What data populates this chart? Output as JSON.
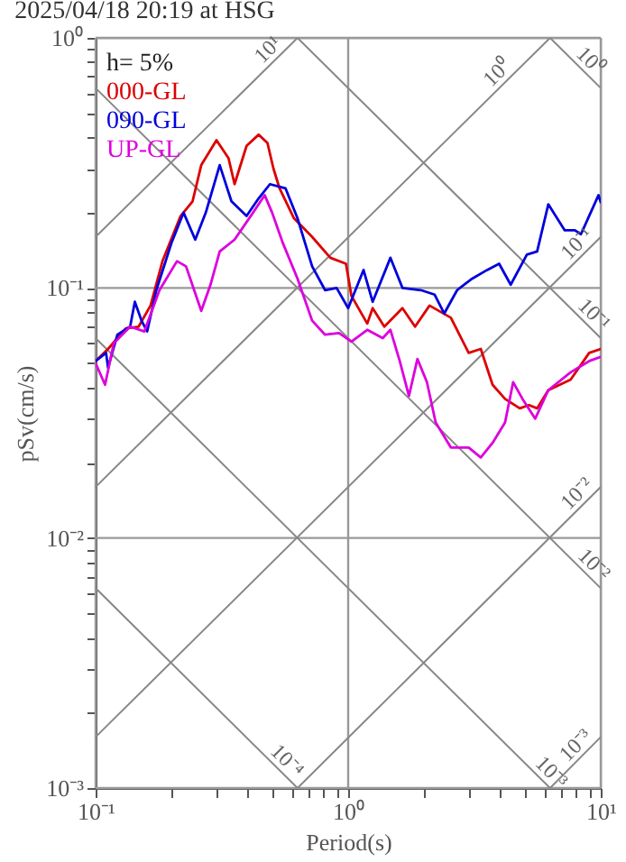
{
  "chart_data": {
    "type": "line",
    "title": "2025/04/18 20:19 at HSG",
    "xlabel": "Period(s)",
    "ylabel": "pSv(cm/s)",
    "legend_title": "h= 5%",
    "legend": "top left",
    "log": "xy",
    "grid": true,
    "line_style": "solid",
    "marker": "none",
    "xlim": [
      0.1,
      10
    ],
    "ylim": [
      0.001,
      1
    ],
    "xticks": [
      {
        "value": 0.1,
        "label": "10⁻¹"
      },
      {
        "value": 0.2,
        "label": null
      },
      {
        "value": 0.3,
        "label": null
      },
      {
        "value": 0.4,
        "label": null
      },
      {
        "value": 0.5,
        "label": null
      },
      {
        "value": 0.6,
        "label": null
      },
      {
        "value": 0.7,
        "label": null
      },
      {
        "value": 0.8,
        "label": null
      },
      {
        "value": 0.9,
        "label": null
      },
      {
        "value": 1,
        "label": "10⁰"
      },
      {
        "value": 2,
        "label": null
      },
      {
        "value": 3,
        "label": null
      },
      {
        "value": 4,
        "label": null
      },
      {
        "value": 5,
        "label": null
      },
      {
        "value": 6,
        "label": null
      },
      {
        "value": 7,
        "label": null
      },
      {
        "value": 8,
        "label": null
      },
      {
        "value": 9,
        "label": null
      },
      {
        "value": 10,
        "label": "10¹"
      }
    ],
    "yticks": [
      {
        "value": 0.001,
        "label": "10⁻³"
      },
      {
        "value": 0.002,
        "label": null
      },
      {
        "value": 0.003,
        "label": null
      },
      {
        "value": 0.004,
        "label": null
      },
      {
        "value": 0.005,
        "label": null
      },
      {
        "value": 0.006,
        "label": null
      },
      {
        "value": 0.007,
        "label": null
      },
      {
        "value": 0.008,
        "label": null
      },
      {
        "value": 0.009,
        "label": null
      },
      {
        "value": 0.01,
        "label": "10⁻²"
      },
      {
        "value": 0.02,
        "label": null
      },
      {
        "value": 0.03,
        "label": null
      },
      {
        "value": 0.04,
        "label": null
      },
      {
        "value": 0.05,
        "label": null
      },
      {
        "value": 0.06,
        "label": null
      },
      {
        "value": 0.07,
        "label": null
      },
      {
        "value": 0.08,
        "label": null
      },
      {
        "value": 0.09,
        "label": null
      },
      {
        "value": 0.1,
        "label": "10⁻¹"
      },
      {
        "value": 0.2,
        "label": null
      },
      {
        "value": 0.3,
        "label": null
      },
      {
        "value": 0.4,
        "label": null
      },
      {
        "value": 0.5,
        "label": null
      },
      {
        "value": 0.6,
        "label": null
      },
      {
        "value": 0.7,
        "label": null
      },
      {
        "value": 0.8,
        "label": null
      },
      {
        "value": 0.9,
        "label": null
      },
      {
        "value": 1,
        "label": "10⁰"
      }
    ],
    "series": [
      {
        "color": "#888888",
        "x": [
          0.1,
          0.63
        ],
        "values": [
          0.0063,
          0.001
        ]
      },
      {
        "color": "#888888",
        "x": [
          0.1,
          6.3
        ],
        "values": [
          0.063,
          0.001
        ]
      },
      {
        "color": "#888888",
        "x": [
          0.1,
          10
        ],
        "values": [
          0.63,
          0.0063
        ]
      },
      {
        "color": "#888888",
        "x": [
          0.63,
          10
        ],
        "values": [
          1,
          0.063
        ]
      },
      {
        "color": "#888888",
        "x": [
          6.3,
          10
        ],
        "values": [
          1,
          0.63
        ]
      },
      {
        "color": "#888888",
        "x": [
          6.3,
          10
        ],
        "values": [
          0.001,
          0.0016
        ]
      },
      {
        "color": "#888888",
        "x": [
          0.63,
          10
        ],
        "values": [
          0.001,
          0.016
        ]
      },
      {
        "color": "#888888",
        "x": [
          0.1,
          10
        ],
        "values": [
          0.0016,
          0.16
        ]
      },
      {
        "color": "#888888",
        "x": [
          0.1,
          6.3
        ],
        "values": [
          0.016,
          1
        ]
      },
      {
        "color": "#888888",
        "x": [
          0.1,
          0.63
        ],
        "values": [
          0.16,
          1
        ]
      },
      {
        "name": "000-GL",
        "color": "#dd0000",
        "x": [
          0.1,
          0.112,
          0.132,
          0.148,
          0.165,
          0.184,
          0.217,
          0.242,
          0.262,
          0.301,
          0.336,
          0.355,
          0.396,
          0.442,
          0.479,
          0.506,
          0.535,
          0.61,
          0.72,
          0.85,
          0.98,
          1.03,
          1.19,
          1.25,
          1.39,
          1.64,
          1.84,
          2.1,
          2.55,
          3.0,
          3.35,
          3.73,
          4.18,
          4.78,
          5.2,
          5.6,
          6.2,
          7.6,
          9.0,
          10
        ],
        "values": [
          0.051,
          0.057,
          0.069,
          0.07,
          0.085,
          0.128,
          0.194,
          0.222,
          0.31,
          0.39,
          0.33,
          0.26,
          0.37,
          0.41,
          0.38,
          0.3,
          0.25,
          0.19,
          0.16,
          0.132,
          0.125,
          0.093,
          0.072,
          0.083,
          0.07,
          0.083,
          0.07,
          0.085,
          0.076,
          0.055,
          0.057,
          0.041,
          0.036,
          0.033,
          0.034,
          0.033,
          0.039,
          0.043,
          0.055,
          0.057
        ]
      },
      {
        "name": "090-GL",
        "color": "#0000dd",
        "x": [
          0.1,
          0.11,
          0.112,
          0.122,
          0.137,
          0.143,
          0.152,
          0.16,
          0.174,
          0.2,
          0.223,
          0.248,
          0.273,
          0.31,
          0.345,
          0.396,
          0.442,
          0.49,
          0.565,
          0.63,
          0.72,
          0.81,
          0.9,
          1.0,
          1.15,
          1.25,
          1.47,
          1.64,
          1.94,
          2.2,
          2.4,
          2.7,
          3.1,
          3.55,
          3.96,
          4.4,
          5.1,
          5.6,
          6.2,
          7.2,
          7.9,
          8.35,
          9.8,
          10
        ],
        "values": [
          0.051,
          0.055,
          0.048,
          0.065,
          0.07,
          0.088,
          0.074,
          0.067,
          0.098,
          0.152,
          0.2,
          0.156,
          0.2,
          0.31,
          0.222,
          0.194,
          0.228,
          0.26,
          0.25,
          0.19,
          0.122,
          0.098,
          0.1,
          0.083,
          0.118,
          0.088,
          0.132,
          0.1,
          0.098,
          0.094,
          0.079,
          0.098,
          0.109,
          0.118,
          0.125,
          0.103,
          0.136,
          0.14,
          0.216,
          0.17,
          0.17,
          0.164,
          0.235,
          0.22
        ]
      },
      {
        "name": "UP-GL",
        "color": "#dd00dd",
        "x": [
          0.1,
          0.109,
          0.118,
          0.137,
          0.156,
          0.179,
          0.21,
          0.228,
          0.262,
          0.285,
          0.31,
          0.355,
          0.42,
          0.467,
          0.5,
          0.55,
          0.63,
          0.72,
          0.81,
          0.92,
          1.03,
          1.19,
          1.37,
          1.47,
          1.6,
          1.74,
          1.88,
          2.05,
          2.22,
          2.55,
          3.0,
          3.35,
          3.73,
          4.18,
          4.5,
          4.9,
          5.5,
          6.2,
          7.6,
          9.0,
          10
        ],
        "values": [
          0.05,
          0.041,
          0.06,
          0.07,
          0.067,
          0.098,
          0.128,
          0.122,
          0.081,
          0.103,
          0.14,
          0.156,
          0.2,
          0.235,
          0.2,
          0.152,
          0.109,
          0.074,
          0.065,
          0.066,
          0.061,
          0.068,
          0.063,
          0.068,
          0.051,
          0.037,
          0.052,
          0.042,
          0.029,
          0.023,
          0.023,
          0.021,
          0.024,
          0.029,
          0.042,
          0.036,
          0.03,
          0.039,
          0.046,
          0.051,
          0.053
        ]
      }
    ],
    "annotations": [
      {
        "text": "10¹",
        "x": 0.52,
        "y": 0.83
      },
      {
        "text": "10⁰",
        "x": 4.2,
        "y": 0.67
      },
      {
        "text": "10⁰",
        "x": 8.4,
        "y": 0.75
      },
      {
        "text": "10⁻¹",
        "x": 8.7,
        "y": 0.139
      },
      {
        "text": "10⁻¹",
        "x": 8.7,
        "y": 0.0724
      },
      {
        "text": "10⁻²",
        "x": 8.7,
        "y": 0.0139
      },
      {
        "text": "10⁻²",
        "x": 8.7,
        "y": 0.00724
      },
      {
        "text": "10⁻³",
        "x": 8.6,
        "y": 0.00137
      },
      {
        "text": "10⁻³",
        "x": 5.9,
        "y": 0.00107
      },
      {
        "text": "10⁻⁴",
        "x": 0.53,
        "y": 0.00119
      }
    ]
  }
}
